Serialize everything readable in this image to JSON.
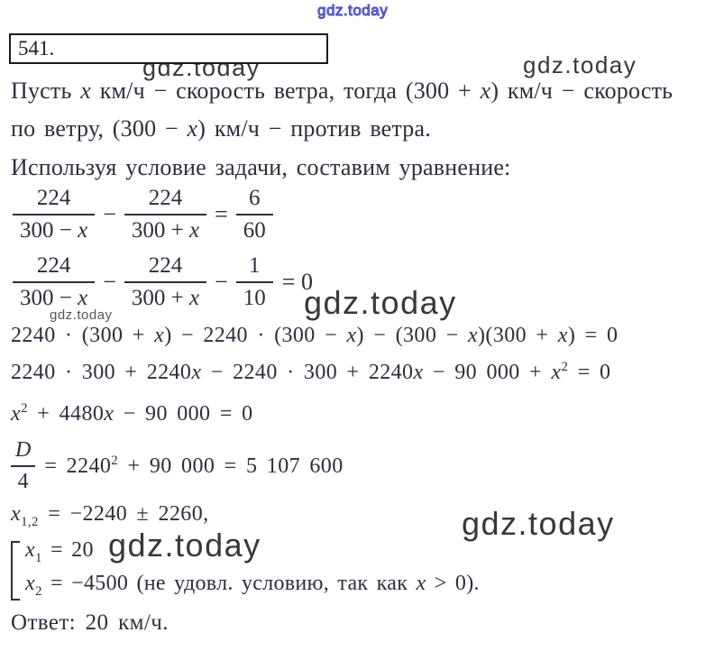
{
  "colors": {
    "text": "#2e2e3f",
    "watermark_blue": "#4444cc",
    "watermark_gray": "#383838"
  },
  "watermarks": {
    "top_center": "gdz.today",
    "under_box": "gdz.today",
    "top_right": "gdz.today",
    "mid_large": "gdz.today",
    "mid_small": "gdz.today",
    "system_inline": "gdz.today",
    "bottom_right": "gdz.today"
  },
  "problem_number": "541.",
  "prose": {
    "line1": [
      {
        "t": "Пусть "
      },
      {
        "t": "x",
        "i": 1
      },
      {
        "t": "  км/ч − скорость ветра, тогда (300 + "
      },
      {
        "t": "x",
        "i": 1
      },
      {
        "t": ") км/ч − скорость"
      }
    ],
    "line2": [
      {
        "t": "по ветру, (300 − "
      },
      {
        "t": "x",
        "i": 1
      },
      {
        "t": ") км/ч − против ветра."
      }
    ],
    "line3": "Используя условие задачи, составим уравнение:"
  },
  "eq1": {
    "f1n": "224",
    "f1d": [
      {
        "t": "300 − "
      },
      {
        "t": "x",
        "i": 1
      }
    ],
    "op1": "−",
    "f2n": "224",
    "f2d": [
      {
        "t": "300 + "
      },
      {
        "t": "x",
        "i": 1
      }
    ],
    "eq": "=",
    "f3n": "6",
    "f3d": "60"
  },
  "eq2": {
    "f1n": "224",
    "f1d": [
      {
        "t": "300 − "
      },
      {
        "t": "x",
        "i": 1
      }
    ],
    "op1": "−",
    "f2n": "224",
    "f2d": [
      {
        "t": "300 + "
      },
      {
        "t": "x",
        "i": 1
      }
    ],
    "op2": "−",
    "f3n": "1",
    "f3d": "10",
    "tail": "= 0"
  },
  "expand1": [
    {
      "t": "2240 · (300 + "
    },
    {
      "t": "x",
      "i": 1
    },
    {
      "t": ") − 2240 · (300 − "
    },
    {
      "t": "x",
      "i": 1
    },
    {
      "t": ") − (300 − "
    },
    {
      "t": "x",
      "i": 1
    },
    {
      "t": ")(300 + "
    },
    {
      "t": "x",
      "i": 1
    },
    {
      "t": ") = 0"
    }
  ],
  "expand2": [
    {
      "t": "2240 · 300 + 2240"
    },
    {
      "t": "x",
      "i": 1
    },
    {
      "t": " − 2240 · 300 + 2240"
    },
    {
      "t": "x",
      "i": 1
    },
    {
      "t": " − 90 000 + "
    },
    {
      "t": "x",
      "i": 1
    },
    {
      "t": "2",
      "p": 1
    },
    {
      "t": " = 0"
    }
  ],
  "quadratic": [
    {
      "t": "x",
      "i": 1
    },
    {
      "t": "2",
      "p": 1
    },
    {
      "t": " + 4480"
    },
    {
      "t": "x",
      "i": 1
    },
    {
      "t": " − 90 000 = 0"
    }
  ],
  "discriminant": {
    "num": [
      {
        "t": "D",
        "i": 1
      }
    ],
    "den": "4",
    "rest": [
      {
        "t": "= 2240"
      },
      {
        "t": "2",
        "p": 1
      },
      {
        "t": " + 90 000 = 5 107 600"
      }
    ]
  },
  "roots": [
    {
      "t": "x",
      "i": 1
    },
    {
      "t": "1,2",
      "s": 1
    },
    {
      "t": " = −2240 ± 2260,"
    }
  ],
  "system": {
    "row1": [
      {
        "t": "x",
        "i": 1
      },
      {
        "t": "1",
        "s": 1
      },
      {
        "t": " = 20"
      }
    ],
    "row2": [
      {
        "t": "x",
        "i": 1
      },
      {
        "t": "2",
        "s": 1
      },
      {
        "t": " = −4500 (не удовл. условию, так как "
      },
      {
        "t": "x",
        "i": 1
      },
      {
        "t": " > 0)."
      }
    ]
  },
  "answer": "Ответ: 20  км/ч."
}
